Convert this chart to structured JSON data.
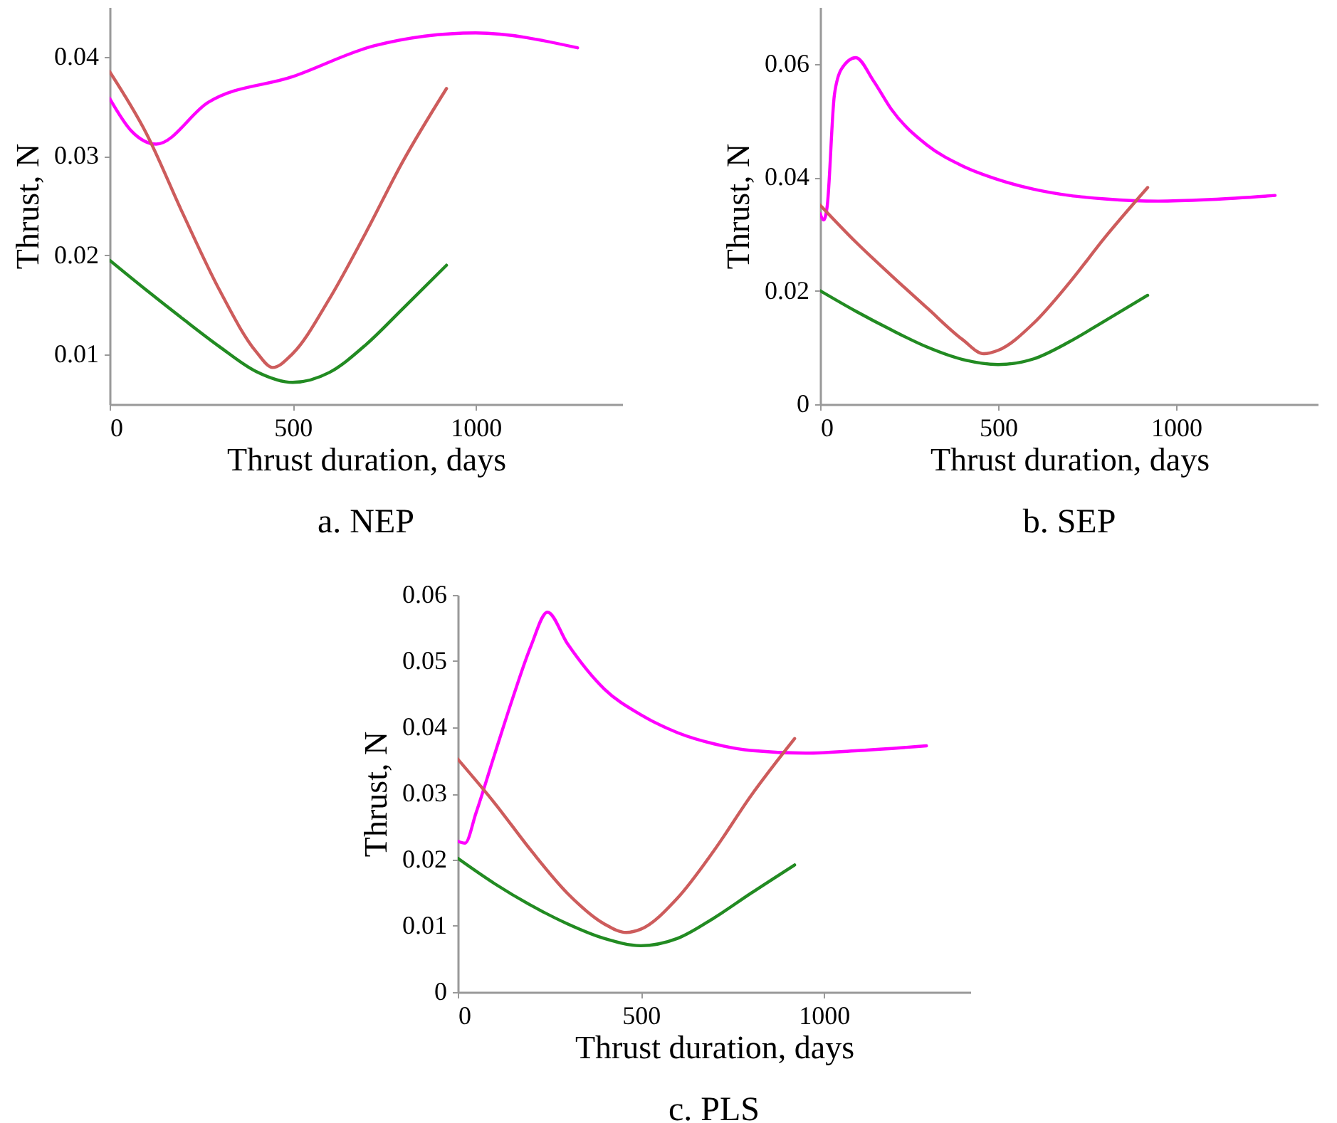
{
  "chart_data": [
    {
      "type": "line",
      "title": "a. NEP",
      "xlabel": "Thrust duration, days",
      "ylabel": "Thrust, N",
      "xlim": [
        0,
        1400
      ],
      "ylim": [
        0.005,
        0.045
      ],
      "xticks": [
        0,
        500,
        1000
      ],
      "yticks": [
        0.01,
        0.02,
        0.03,
        0.04
      ],
      "series": [
        {
          "color": "#ff00ff",
          "x": [
            0,
            60,
            127,
            269,
            500,
            722,
            1000,
            1278
          ],
          "values": [
            0.0358,
            0.0325,
            0.0312,
            0.0354,
            0.038,
            0.0411,
            0.0424,
            0.0409
          ]
        },
        {
          "color": "#cd5c5c",
          "x": [
            0,
            100,
            200,
            300,
            400,
            445,
            500,
            600,
            700,
            800,
            920
          ],
          "values": [
            0.0385,
            0.0323,
            0.0242,
            0.0165,
            0.0103,
            0.0087,
            0.0101,
            0.0156,
            0.0223,
            0.0294,
            0.0368
          ]
        },
        {
          "color": "#228b22",
          "x": [
            0,
            100,
            200,
            300,
            400,
            500,
            600,
            700,
            800,
            920
          ],
          "values": [
            0.0195,
            0.0165,
            0.0136,
            0.0108,
            0.0083,
            0.0072,
            0.0082,
            0.011,
            0.0146,
            0.019
          ]
        }
      ]
    },
    {
      "type": "line",
      "title": "b. SEP",
      "xlabel": "Thrust duration, days",
      "ylabel": "Thrust, N",
      "xlim": [
        0,
        1400
      ],
      "ylim": [
        0,
        0.07
      ],
      "xticks": [
        0,
        500,
        1000
      ],
      "yticks": [
        0,
        0.02,
        0.04,
        0.06
      ],
      "series": [
        {
          "color": "#ff00ff",
          "x": [
            0,
            10,
            20,
            40,
            60,
            100,
            150,
            200,
            300,
            400,
            500,
            600,
            700,
            800,
            950,
            1100,
            1278
          ],
          "values": [
            0.0336,
            0.0325,
            0.035,
            0.0545,
            0.0591,
            0.0611,
            0.057,
            0.052,
            0.0457,
            0.042,
            0.0396,
            0.0379,
            0.0368,
            0.0362,
            0.0358,
            0.0361,
            0.0368
          ]
        },
        {
          "color": "#cd5c5c",
          "x": [
            0,
            100,
            200,
            300,
            400,
            460,
            500,
            600,
            700,
            800,
            920
          ],
          "values": [
            0.0351,
            0.0286,
            0.0227,
            0.017,
            0.0114,
            0.0089,
            0.0095,
            0.0143,
            0.0214,
            0.0294,
            0.0382
          ]
        },
        {
          "color": "#228b22",
          "x": [
            0,
            100,
            200,
            300,
            400,
            500,
            600,
            700,
            800,
            920
          ],
          "values": [
            0.02,
            0.0164,
            0.0131,
            0.0101,
            0.0079,
            0.007,
            0.008,
            0.011,
            0.0147,
            0.0192
          ]
        }
      ]
    },
    {
      "type": "line",
      "title": "c. PLS",
      "xlabel": "Thrust duration, days",
      "ylabel": "Thrust, N",
      "xlim": [
        0,
        1400
      ],
      "ylim": [
        0,
        0.06
      ],
      "xticks": [
        0,
        500,
        1000
      ],
      "yticks": [
        0,
        0.01,
        0.02,
        0.03,
        0.04,
        0.05,
        0.06
      ],
      "series": [
        {
          "color": "#ff00ff",
          "x": [
            0,
            20,
            50,
            100,
            150,
            200,
            245,
            300,
            400,
            500,
            600,
            700,
            800,
            950,
            1100,
            1280
          ],
          "values": [
            0.0228,
            0.0225,
            0.0271,
            0.0358,
            0.0444,
            0.0523,
            0.0574,
            0.0526,
            0.0458,
            0.0419,
            0.0392,
            0.0375,
            0.0365,
            0.0361,
            0.0365,
            0.0372
          ]
        },
        {
          "color": "#cd5c5c",
          "x": [
            0,
            100,
            200,
            300,
            400,
            460,
            500,
            600,
            700,
            800,
            920
          ],
          "values": [
            0.0352,
            0.0286,
            0.0214,
            0.0149,
            0.0103,
            0.009,
            0.0095,
            0.0142,
            0.0214,
            0.0296,
            0.0383
          ]
        },
        {
          "color": "#228b22",
          "x": [
            0,
            100,
            200,
            300,
            400,
            500,
            600,
            700,
            800,
            920
          ],
          "values": [
            0.0202,
            0.0164,
            0.0131,
            0.0103,
            0.0081,
            0.007,
            0.0081,
            0.0112,
            0.0149,
            0.0192
          ]
        }
      ]
    }
  ]
}
